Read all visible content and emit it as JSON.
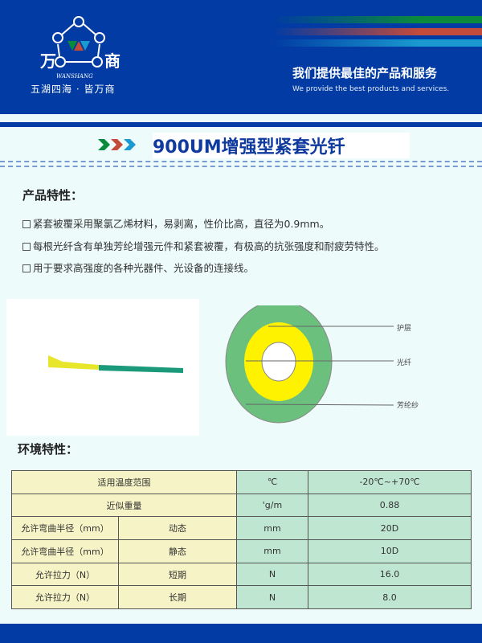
{
  "header": {
    "brand_mark": "万 商",
    "brand_latin": "WANSHANG",
    "motto": "五湖四海 · 皆万商",
    "slogan_cn": "我们提供最佳的产品和服务",
    "slogan_en": "We provide the best products and services.",
    "colors": {
      "blue": "#013ba3",
      "green": "#0a8a3c",
      "red": "#c44a3a",
      "cyan": "#1a9ad0"
    }
  },
  "title": "900UM增强型紧套光钎",
  "features": {
    "heading": "产品特性：",
    "items": [
      "紧套被覆采用聚氯乙烯材料，易剥离，性价比高，直径为0.9mm。",
      "每根光纤含有单独芳纶增强元件和紧套被覆，有极高的抗张强度和耐疲劳特性。",
      "用于要求高强度的各种光器件、光设备的连接线。"
    ]
  },
  "diagram": {
    "labels": [
      "护层",
      "光纤",
      "芳纶纱"
    ],
    "colors": {
      "sheath": "#6cc07e",
      "aramid": "#fff200"
    }
  },
  "environment": {
    "heading": "环境特性：",
    "rows": [
      {
        "param": "适用温度范围",
        "sub": "",
        "unit": "℃",
        "value": "-20℃~+70℃"
      },
      {
        "param": "近似重量",
        "sub": "",
        "unit": "'g/m",
        "value": "0.88"
      },
      {
        "param": "允许弯曲半径（mm）",
        "sub": "动态",
        "unit": "mm",
        "value": "20D"
      },
      {
        "param": "允许弯曲半径（mm）",
        "sub": "静态",
        "unit": "mm",
        "value": "10D"
      },
      {
        "param": "允许拉力（N）",
        "sub": "短期",
        "unit": "N",
        "value": "16.0"
      },
      {
        "param": "允许拉力（N）",
        "sub": "长期",
        "unit": "N",
        "value": "8.0"
      }
    ]
  }
}
